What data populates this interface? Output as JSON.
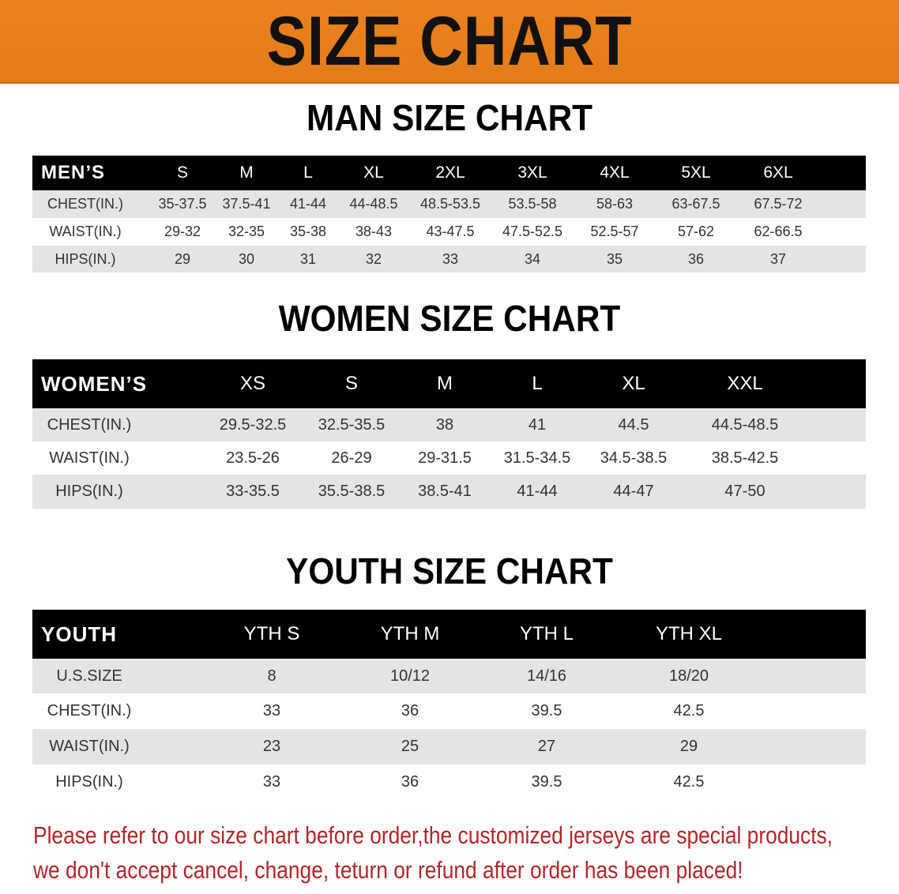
{
  "banner_title": "SIZE CHART",
  "colors": {
    "banner": "#e9821f",
    "header_row": "#000000",
    "shaded_row": "#e4e4e4",
    "note": "#b5252a"
  },
  "men": {
    "title": "MAN SIZE CHART",
    "header_label": "MEN’S",
    "sizes": [
      "S",
      "M",
      "L",
      "XL",
      "2XL",
      "3XL",
      "4XL",
      "5XL",
      "6XL"
    ],
    "rows": [
      {
        "label": "CHEST(IN.)",
        "values": [
          "35-37.5",
          "37.5-41",
          "41-44",
          "44-48.5",
          "48.5-53.5",
          "53.5-58",
          "58-63",
          "63-67.5",
          "67.5-72"
        ]
      },
      {
        "label": "WAIST(IN.)",
        "values": [
          "29-32",
          "32-35",
          "35-38",
          "38-43",
          "43-47.5",
          "47.5-52.5",
          "52.5-57",
          "57-62",
          "62-66.5"
        ]
      },
      {
        "label": "HIPS(IN.)",
        "values": [
          "29",
          "30",
          "31",
          "32",
          "33",
          "34",
          "35",
          "36",
          "37"
        ]
      }
    ]
  },
  "women": {
    "title": "WOMEN SIZE CHART",
    "header_label": "WOMEN’S",
    "sizes": [
      "XS",
      "S",
      "M",
      "L",
      "XL",
      "XXL"
    ],
    "rows": [
      {
        "label": "CHEST(IN.)",
        "values": [
          "29.5-32.5",
          "32.5-35.5",
          "38",
          "41",
          "44.5",
          "44.5-48.5"
        ]
      },
      {
        "label": "WAIST(IN.)",
        "values": [
          "23.5-26",
          "26-29",
          "29-31.5",
          "31.5-34.5",
          "34.5-38.5",
          "38.5-42.5"
        ]
      },
      {
        "label": "HIPS(IN.)",
        "values": [
          "33-35.5",
          "35.5-38.5",
          "38.5-41",
          "41-44",
          "44-47",
          "47-50"
        ]
      }
    ]
  },
  "youth": {
    "title": "YOUTH SIZE CHART",
    "header_label": "YOUTH",
    "sizes": [
      "YTH S",
      "YTH M",
      "YTH L",
      "YTH XL"
    ],
    "rows": [
      {
        "label": "U.S.SIZE",
        "values": [
          "8",
          "10/12",
          "14/16",
          "18/20"
        ]
      },
      {
        "label": "CHEST(IN.)",
        "values": [
          "33",
          "36",
          "39.5",
          "42.5"
        ]
      },
      {
        "label": "WAIST(IN.)",
        "values": [
          "23",
          "25",
          "27",
          "29"
        ]
      },
      {
        "label": "HIPS(IN.)",
        "values": [
          "33",
          "36",
          "39.5",
          "42.5"
        ]
      }
    ]
  },
  "note": {
    "line1": "Please refer to our size chart before order,the customized jerseys are special products,",
    "line2": "we don't accept cancel, change, teturn or refund after order has been placed!"
  }
}
